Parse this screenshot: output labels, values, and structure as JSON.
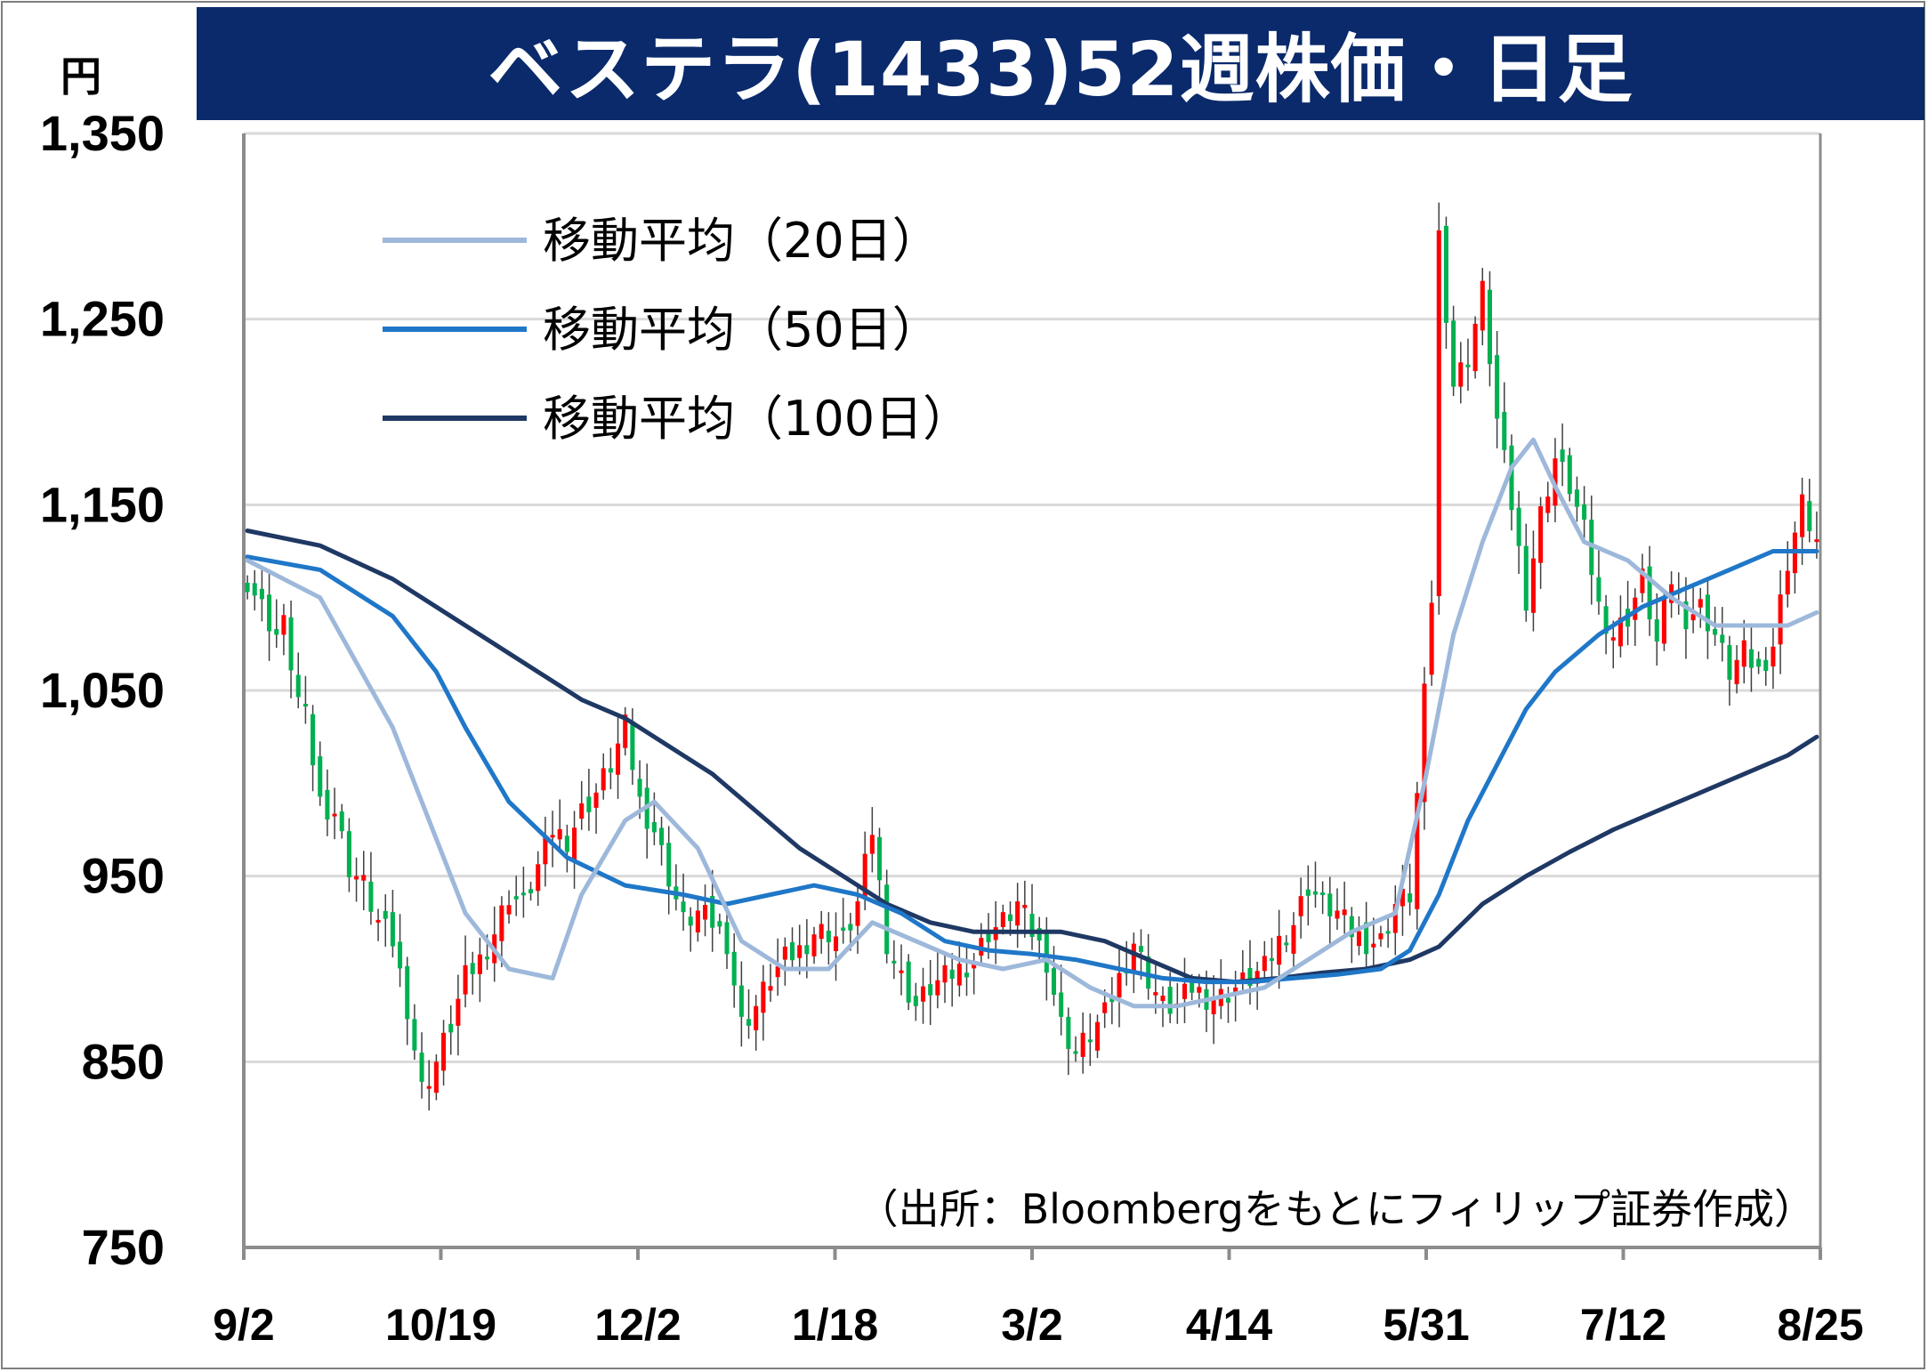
{
  "title": "ベステラ(1433)52週株価・日足",
  "unit": "円",
  "source": "（出所：Bloombergをもとにフィリップ証券作成）",
  "colors": {
    "title_bg": "#0a2a6b",
    "up": "#ff0000",
    "down": "#00b050",
    "ma20": "#9db8da",
    "ma50": "#1f77c8",
    "ma100": "#1f3864",
    "grid": "#d9d9d9"
  },
  "chart_data": {
    "type": "candlestick",
    "ylim": [
      750,
      1350
    ],
    "yticks": [
      "1,350",
      "1,250",
      "1,150",
      "1,050",
      "950",
      "850",
      "750"
    ],
    "ytick_values": [
      1350,
      1250,
      1150,
      1050,
      950,
      850,
      750
    ],
    "xticks": [
      "9/2",
      "10/19",
      "12/2",
      "1/18",
      "3/2",
      "4/14",
      "5/31",
      "7/12",
      "8/25"
    ],
    "grid": "horizontal",
    "legend": {
      "position": "top-left",
      "entries": [
        {
          "label": "移動平均（20日）",
          "color": "#9db8da"
        },
        {
          "label": "移動平均（50日）",
          "color": "#1f77c8"
        },
        {
          "label": "移動平均（100日）",
          "color": "#1f3864"
        }
      ]
    },
    "close_anchors": [
      [
        0,
        1110
      ],
      [
        2,
        1095
      ],
      [
        4,
        1080
      ],
      [
        5,
        1085
      ],
      [
        7,
        1045
      ],
      [
        8,
        1035
      ],
      [
        10,
        990
      ],
      [
        12,
        985
      ],
      [
        14,
        955
      ],
      [
        16,
        945
      ],
      [
        18,
        925
      ],
      [
        20,
        915
      ],
      [
        22,
        880
      ],
      [
        24,
        835
      ],
      [
        26,
        850
      ],
      [
        28,
        870
      ],
      [
        30,
        895
      ],
      [
        32,
        905
      ],
      [
        34,
        920
      ],
      [
        36,
        940
      ],
      [
        38,
        935
      ],
      [
        40,
        955
      ],
      [
        42,
        975
      ],
      [
        44,
        970
      ],
      [
        46,
        985
      ],
      [
        48,
        995
      ],
      [
        50,
        1010
      ],
      [
        52,
        1030
      ],
      [
        54,
        990
      ],
      [
        56,
        975
      ],
      [
        58,
        950
      ],
      [
        60,
        925
      ],
      [
        62,
        930
      ],
      [
        64,
        925
      ],
      [
        66,
        915
      ],
      [
        68,
        870
      ],
      [
        70,
        880
      ],
      [
        72,
        895
      ],
      [
        74,
        905
      ],
      [
        76,
        910
      ],
      [
        78,
        920
      ],
      [
        80,
        920
      ],
      [
        82,
        915
      ],
      [
        84,
        935
      ],
      [
        86,
        975
      ],
      [
        88,
        915
      ],
      [
        90,
        895
      ],
      [
        92,
        880
      ],
      [
        94,
        890
      ],
      [
        96,
        895
      ],
      [
        98,
        900
      ],
      [
        100,
        905
      ],
      [
        102,
        920
      ],
      [
        104,
        925
      ],
      [
        106,
        935
      ],
      [
        108,
        920
      ],
      [
        110,
        905
      ],
      [
        112,
        870
      ],
      [
        114,
        855
      ],
      [
        116,
        865
      ],
      [
        118,
        875
      ],
      [
        120,
        895
      ],
      [
        122,
        915
      ],
      [
        124,
        895
      ],
      [
        126,
        880
      ],
      [
        128,
        880
      ],
      [
        130,
        890
      ],
      [
        132,
        885
      ],
      [
        134,
        885
      ],
      [
        136,
        890
      ],
      [
        138,
        895
      ],
      [
        140,
        900
      ],
      [
        142,
        915
      ],
      [
        144,
        925
      ],
      [
        146,
        945
      ],
      [
        148,
        935
      ],
      [
        150,
        930
      ],
      [
        152,
        920
      ],
      [
        154,
        915
      ],
      [
        156,
        915
      ],
      [
        158,
        935
      ],
      [
        160,
        940
      ],
      [
        163,
        1100
      ],
      [
        164,
        1295
      ],
      [
        166,
        1215
      ],
      [
        168,
        1230
      ],
      [
        170,
        1265
      ],
      [
        172,
        1195
      ],
      [
        174,
        1150
      ],
      [
        176,
        1100
      ],
      [
        178,
        1145
      ],
      [
        180,
        1175
      ],
      [
        182,
        1160
      ],
      [
        184,
        1135
      ],
      [
        186,
        1095
      ],
      [
        188,
        1080
      ],
      [
        190,
        1090
      ],
      [
        192,
        1110
      ],
      [
        194,
        1075
      ],
      [
        196,
        1110
      ],
      [
        198,
        1090
      ],
      [
        200,
        1095
      ],
      [
        202,
        1080
      ],
      [
        204,
        1060
      ],
      [
        206,
        1070
      ],
      [
        208,
        1060
      ],
      [
        210,
        1075
      ],
      [
        212,
        1120
      ],
      [
        214,
        1150
      ],
      [
        216,
        1130
      ]
    ],
    "ma20": [
      [
        0,
        1120
      ],
      [
        10,
        1100
      ],
      [
        20,
        1030
      ],
      [
        30,
        930
      ],
      [
        36,
        900
      ],
      [
        42,
        895
      ],
      [
        46,
        940
      ],
      [
        52,
        980
      ],
      [
        56,
        990
      ],
      [
        62,
        965
      ],
      [
        68,
        915
      ],
      [
        74,
        900
      ],
      [
        80,
        900
      ],
      [
        86,
        925
      ],
      [
        92,
        915
      ],
      [
        98,
        905
      ],
      [
        104,
        900
      ],
      [
        110,
        905
      ],
      [
        116,
        890
      ],
      [
        122,
        880
      ],
      [
        128,
        880
      ],
      [
        134,
        885
      ],
      [
        140,
        890
      ],
      [
        146,
        905
      ],
      [
        152,
        920
      ],
      [
        158,
        930
      ],
      [
        162,
        1000
      ],
      [
        166,
        1080
      ],
      [
        170,
        1130
      ],
      [
        174,
        1170
      ],
      [
        177,
        1185
      ],
      [
        180,
        1160
      ],
      [
        184,
        1130
      ],
      [
        190,
        1120
      ],
      [
        196,
        1100
      ],
      [
        202,
        1085
      ],
      [
        208,
        1085
      ],
      [
        212,
        1085
      ],
      [
        216,
        1092
      ]
    ],
    "ma50": [
      [
        0,
        1122
      ],
      [
        10,
        1115
      ],
      [
        20,
        1090
      ],
      [
        26,
        1060
      ],
      [
        30,
        1030
      ],
      [
        36,
        990
      ],
      [
        44,
        960
      ],
      [
        52,
        945
      ],
      [
        60,
        940
      ],
      [
        66,
        935
      ],
      [
        72,
        940
      ],
      [
        78,
        945
      ],
      [
        84,
        940
      ],
      [
        90,
        930
      ],
      [
        96,
        915
      ],
      [
        102,
        910
      ],
      [
        108,
        908
      ],
      [
        114,
        905
      ],
      [
        120,
        900
      ],
      [
        126,
        895
      ],
      [
        132,
        893
      ],
      [
        138,
        893
      ],
      [
        144,
        895
      ],
      [
        150,
        897
      ],
      [
        156,
        900
      ],
      [
        160,
        910
      ],
      [
        164,
        940
      ],
      [
        168,
        980
      ],
      [
        172,
        1010
      ],
      [
        176,
        1040
      ],
      [
        180,
        1060
      ],
      [
        186,
        1080
      ],
      [
        192,
        1095
      ],
      [
        198,
        1105
      ],
      [
        204,
        1115
      ],
      [
        210,
        1125
      ],
      [
        216,
        1125
      ]
    ],
    "ma100": [
      [
        0,
        1136
      ],
      [
        10,
        1128
      ],
      [
        20,
        1110
      ],
      [
        30,
        1085
      ],
      [
        40,
        1060
      ],
      [
        46,
        1045
      ],
      [
        52,
        1035
      ],
      [
        58,
        1020
      ],
      [
        64,
        1005
      ],
      [
        70,
        985
      ],
      [
        76,
        965
      ],
      [
        82,
        950
      ],
      [
        88,
        935
      ],
      [
        94,
        925
      ],
      [
        100,
        920
      ],
      [
        106,
        920
      ],
      [
        112,
        920
      ],
      [
        118,
        915
      ],
      [
        124,
        905
      ],
      [
        130,
        895
      ],
      [
        136,
        893
      ],
      [
        142,
        895
      ],
      [
        148,
        898
      ],
      [
        154,
        900
      ],
      [
        160,
        905
      ],
      [
        164,
        912
      ],
      [
        170,
        935
      ],
      [
        176,
        950
      ],
      [
        182,
        963
      ],
      [
        188,
        975
      ],
      [
        194,
        985
      ],
      [
        200,
        995
      ],
      [
        206,
        1005
      ],
      [
        212,
        1015
      ],
      [
        216,
        1025
      ]
    ]
  }
}
